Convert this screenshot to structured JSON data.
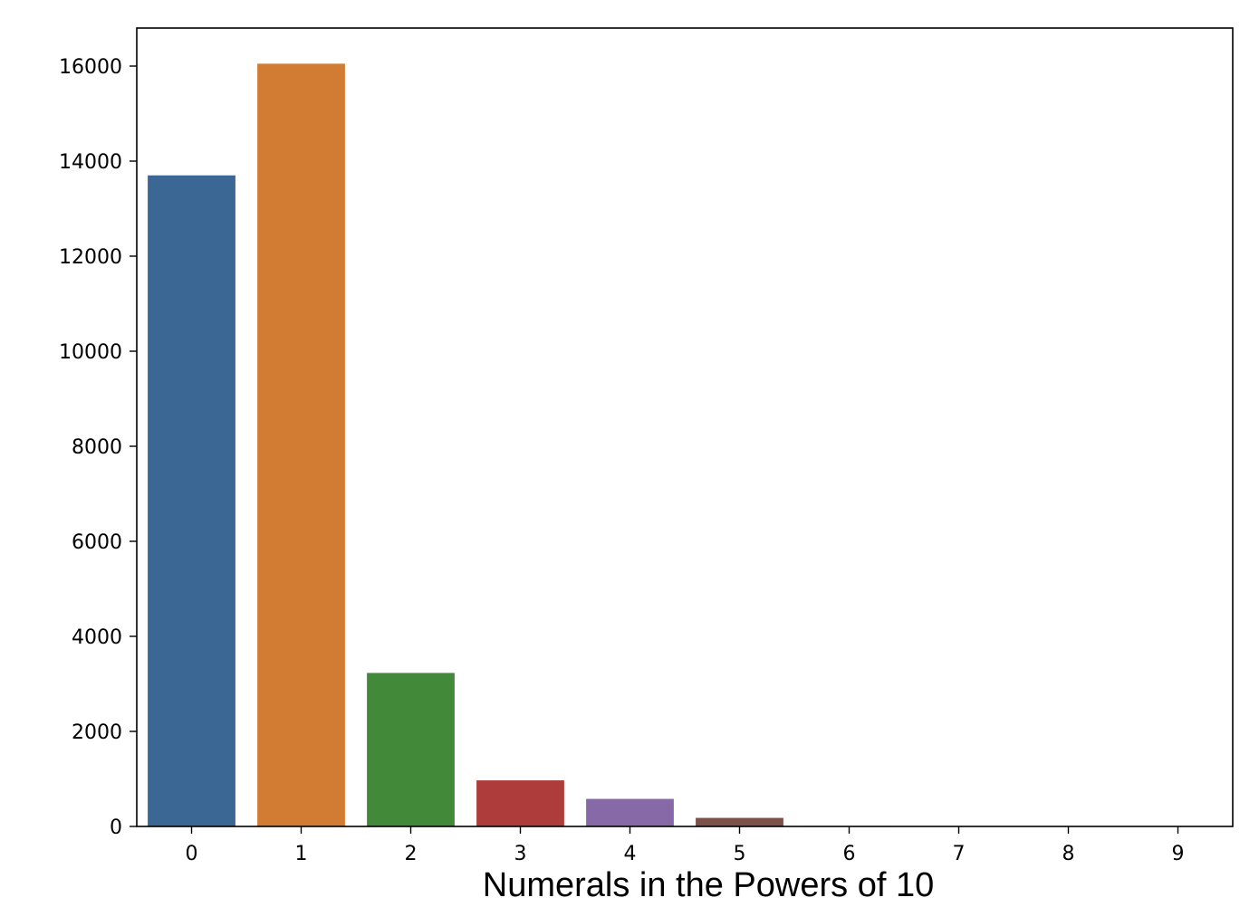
{
  "chart_data": {
    "type": "bar",
    "title": "",
    "xlabel": "Numerals in the Powers of 10",
    "ylabel": "",
    "categories": [
      "0",
      "1",
      "2",
      "3",
      "4",
      "5",
      "6",
      "7",
      "8",
      "9"
    ],
    "values": [
      13700,
      16050,
      3230,
      970,
      580,
      180,
      10,
      5,
      3,
      2
    ],
    "colors": [
      "#3a6794",
      "#d17c32",
      "#428a3a",
      "#ad3c3a",
      "#8769a8",
      "#7c5248",
      "#cf85be",
      "#7f7f7f",
      "#b5b53a",
      "#3ab5c4"
    ],
    "ylim": [
      0,
      16800
    ],
    "yticks": [
      0,
      2000,
      4000,
      6000,
      8000,
      10000,
      12000,
      14000,
      16000
    ],
    "grid": false,
    "legend": "none"
  }
}
